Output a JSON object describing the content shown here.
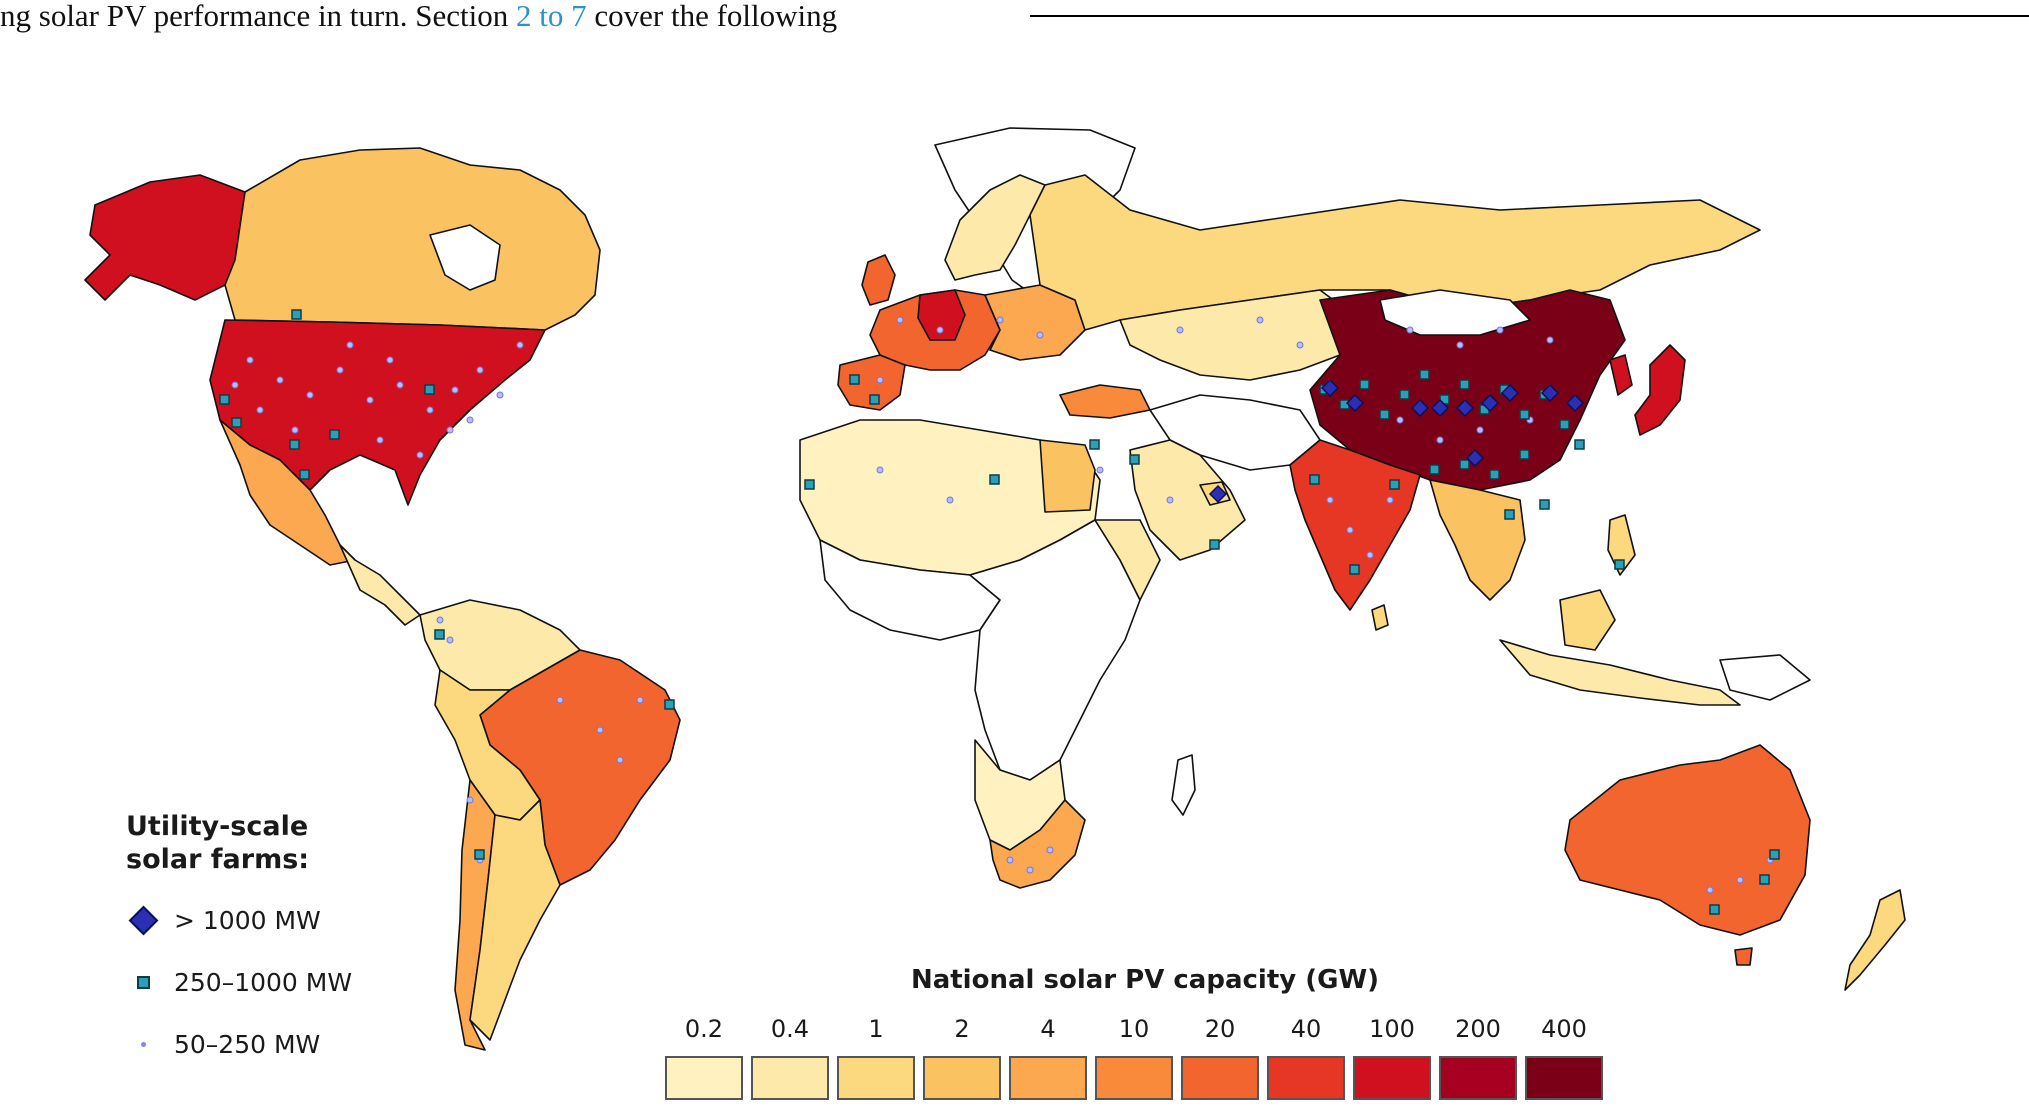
{
  "page_text": {
    "line_before": "ng solar PV performance in turn. Section ",
    "link": "2 to 7",
    "line_after": " cover the following"
  },
  "legend": {
    "title_line1": "Utility-scale",
    "title_line2": "solar farms:",
    "items": [
      {
        "label": "> 1000 MW",
        "marker": "diamond",
        "color": "#2a2fb4"
      },
      {
        "label": "250–1000 MW",
        "marker": "square",
        "color": "#2a9fb8"
      },
      {
        "label": "50–250 MW",
        "marker": "dot",
        "color": "#7f88e6"
      }
    ]
  },
  "color_scale": {
    "title": "National solar PV capacity (GW)",
    "bins": [
      {
        "label": "0.2",
        "color": "#fff2c0"
      },
      {
        "label": "0.4",
        "color": "#fde9a9"
      },
      {
        "label": "1",
        "color": "#fcd97f"
      },
      {
        "label": "2",
        "color": "#fbc261"
      },
      {
        "label": "4",
        "color": "#fba850"
      },
      {
        "label": "10",
        "color": "#f98a3c"
      },
      {
        "label": "20",
        "color": "#f3652f"
      },
      {
        "label": "40",
        "color": "#e63725"
      },
      {
        "label": "100",
        "color": "#d0101e"
      },
      {
        "label": "200",
        "color": "#a5001f"
      },
      {
        "label": "400",
        "color": "#7a0017"
      }
    ]
  }
}
